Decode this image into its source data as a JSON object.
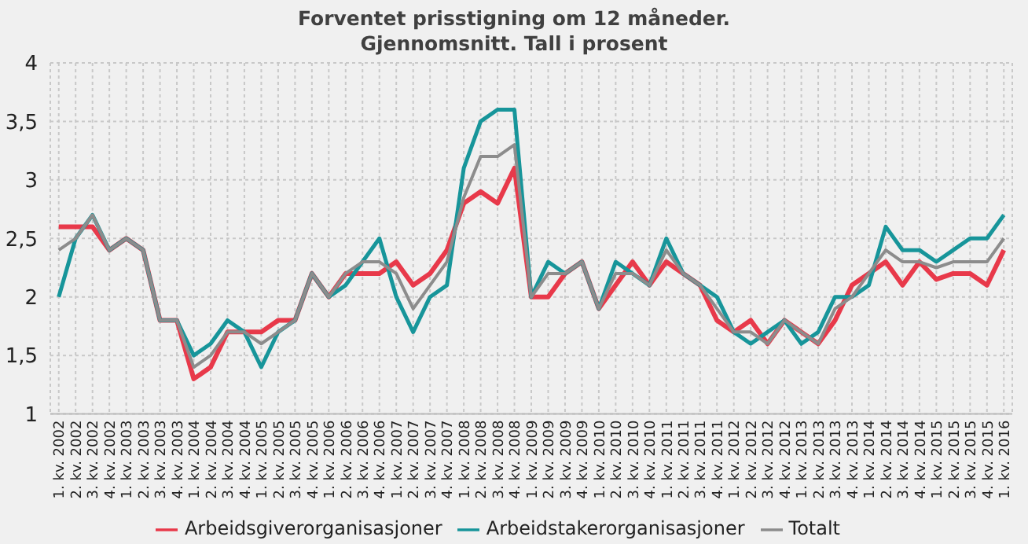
{
  "chart_data": {
    "type": "line",
    "title": "Forventet prisstigning om 12 måneder.\nGjennomsnitt. Tall i prosent",
    "categories": [
      "1. kv. 2002",
      "2. kv. 2002",
      "3. kv. 2002",
      "4. kv. 2002",
      "1. kv. 2003",
      "2. kv. 2003",
      "3. kv. 2003",
      "4. kv. 2003",
      "1. kv. 2004",
      "2. kv. 2004",
      "3. kv. 2004",
      "4. kv. 2004",
      "1. kv. 2005",
      "2. kv. 2005",
      "3. kv. 2005",
      "4. kv. 2005",
      "1. kv. 2006",
      "2. kv. 2006",
      "3. kv. 2006",
      "4. kv. 2006",
      "1. kv. 2007",
      "2. kv. 2007",
      "3. kv. 2007",
      "4. kv. 2007",
      "1. kv. 2008",
      "2. kv. 2008",
      "3. kv. 2008",
      "4. kv. 2008",
      "1. kv. 2009",
      "2. kv. 2009",
      "3. kv. 2009",
      "4. kv. 2009",
      "1. kv. 2010",
      "2. kv. 2010",
      "3. kv. 2010",
      "4. kv. 2010",
      "1. kv. 2011",
      "2. kv. 2011",
      "3. kv. 2011",
      "4. kv. 2011",
      "1. kv. 2012",
      "2. kv. 2012",
      "3. kv. 2012",
      "4. kv. 2012",
      "1. kv. 2013",
      "2. kv. 2013",
      "3. kv. 2013",
      "4. kv. 2013",
      "1. kv. 2014",
      "2. kv. 2014",
      "3. kv. 2014",
      "4. kv. 2014",
      "1. kv. 2015",
      "2. kv. 2015",
      "3. kv. 2015",
      "4. kv. 2015",
      "1. kv. 2016"
    ],
    "series": [
      {
        "name": "Arbeidsgiverorganisasjoner",
        "color": "#e8394a",
        "values": [
          2.6,
          2.6,
          2.6,
          2.4,
          2.5,
          2.4,
          1.8,
          1.8,
          1.3,
          1.4,
          1.7,
          1.7,
          1.7,
          1.8,
          1.8,
          2.2,
          2.0,
          2.2,
          2.2,
          2.2,
          2.3,
          2.1,
          2.2,
          2.4,
          2.8,
          2.9,
          2.8,
          3.1,
          2.0,
          2.0,
          2.2,
          2.3,
          1.9,
          2.1,
          2.3,
          2.1,
          2.3,
          2.2,
          2.1,
          1.8,
          1.7,
          1.8,
          1.6,
          1.8,
          1.7,
          1.6,
          1.8,
          2.1,
          2.2,
          2.3,
          2.1,
          2.3,
          2.15,
          2.2,
          2.2,
          2.1,
          2.4
        ]
      },
      {
        "name": "Arbeidstakerorganisasjoner",
        "color": "#17959a",
        "values": [
          2.0,
          2.5,
          2.7,
          2.4,
          2.5,
          2.4,
          1.8,
          1.8,
          1.5,
          1.6,
          1.8,
          1.7,
          1.4,
          1.7,
          1.8,
          2.2,
          2.0,
          2.1,
          2.3,
          2.5,
          2.0,
          1.7,
          2.0,
          2.1,
          3.1,
          3.5,
          3.6,
          3.6,
          2.0,
          2.3,
          2.2,
          2.3,
          1.9,
          2.3,
          2.2,
          2.1,
          2.5,
          2.2,
          2.1,
          2.0,
          1.7,
          1.6,
          1.7,
          1.8,
          1.6,
          1.7,
          2.0,
          2.0,
          2.1,
          2.6,
          2.4,
          2.4,
          2.3,
          2.4,
          2.5,
          2.5,
          2.7
        ]
      },
      {
        "name": "Totalt",
        "color": "#8c8c8c",
        "values": [
          2.4,
          2.5,
          2.7,
          2.4,
          2.5,
          2.4,
          1.8,
          1.8,
          1.4,
          1.5,
          1.7,
          1.7,
          1.6,
          1.7,
          1.8,
          2.2,
          2.0,
          2.2,
          2.3,
          2.3,
          2.2,
          1.9,
          2.1,
          2.3,
          2.85,
          3.2,
          3.2,
          3.3,
          2.0,
          2.2,
          2.2,
          2.3,
          1.9,
          2.2,
          2.2,
          2.1,
          2.4,
          2.2,
          2.1,
          1.9,
          1.7,
          1.7,
          1.6,
          1.8,
          1.7,
          1.6,
          1.9,
          2.0,
          2.2,
          2.4,
          2.3,
          2.3,
          2.25,
          2.3,
          2.3,
          2.3,
          2.5
        ]
      }
    ],
    "ylim": [
      1,
      4
    ],
    "yticks": [
      1,
      {
        "value": 1.5,
        "label": "1,5"
      },
      2,
      {
        "value": 2.5,
        "label": "2,5"
      },
      3,
      {
        "value": 3.5,
        "label": "3,5"
      },
      4
    ],
    "grid": true,
    "legend": "bottom",
    "marker": "none",
    "line_style": "solid"
  }
}
